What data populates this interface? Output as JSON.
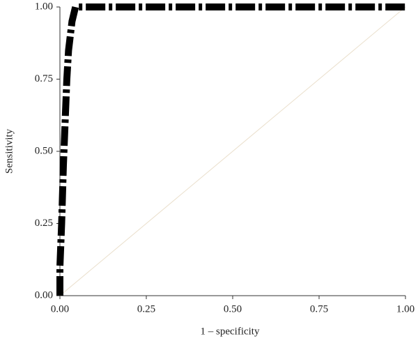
{
  "chart_data": {
    "type": "line",
    "x_label": "1 – specificity",
    "y_label": "Sensitivity",
    "series": [
      {
        "color": "#000000",
        "x": [
          0,
          0,
          0.005,
          0.01,
          0.015,
          0.02,
          0.025,
          0.035,
          0.045,
          1
        ],
        "values": [
          0,
          0.1,
          0.25,
          0.45,
          0.6,
          0.75,
          0.85,
          0.95,
          1,
          1
        ]
      },
      {
        "color": "#eadfcc",
        "x": [
          0,
          1
        ],
        "values": [
          0,
          1
        ]
      }
    ],
    "xlim": [
      0,
      1
    ],
    "ylim": [
      0,
      1
    ],
    "xticks": [
      {
        "value": 0,
        "label": "0.00"
      },
      {
        "value": 0.25,
        "label": "0.25"
      },
      {
        "value": 0.5,
        "label": "0.50"
      },
      {
        "value": 0.75,
        "label": "0.75"
      },
      {
        "value": 1,
        "label": "1.00"
      }
    ],
    "yticks": [
      {
        "value": 0,
        "label": "0.00"
      },
      {
        "value": 0.25,
        "label": "0.25"
      },
      {
        "value": 0.5,
        "label": "0.50"
      },
      {
        "value": 0.75,
        "label": "0.75"
      },
      {
        "value": 1,
        "label": "1.00"
      }
    ]
  }
}
